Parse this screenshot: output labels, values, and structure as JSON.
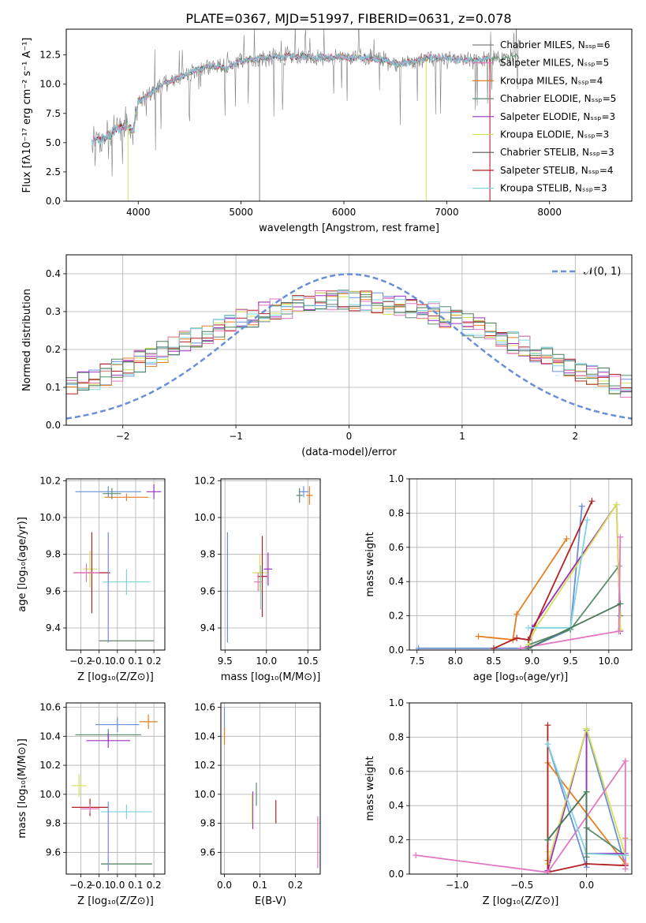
{
  "figure": {
    "title": "PLATE=0367, MJD=51997, FIBERID=0631, z=0.078"
  },
  "colors": {
    "model_series": [
      "#808080",
      "#e377c2",
      "#e67e22",
      "#5b8c6e",
      "#9b30c0",
      "#d4e157",
      "#555555",
      "#b22222",
      "#7fd4e0"
    ],
    "summary_series": [
      "#6a8fd8",
      "#e67e22",
      "#5b8c6e",
      "#9b30c0",
      "#d4e157",
      "#b22222",
      "#e377c2",
      "#7fd4e0",
      "#4a7a5a"
    ],
    "gauss": "#6a8fd8",
    "grid": "#b0b0b0"
  },
  "chart_data": [
    {
      "id": "spectrum",
      "type": "line",
      "title": "PLATE=0367, MJD=51997, FIBERID=0631, z=0.078",
      "xlabel": "wavelength [Angstrom, rest frame]",
      "ylabel": "Flux [fλ10⁻¹⁷ erg cm⁻² s⁻¹ A⁻¹]",
      "xlim": [
        3300,
        8800
      ],
      "ylim": [
        0,
        14.7
      ],
      "xticks": [
        4000,
        5000,
        6000,
        7000,
        8000
      ],
      "yticks": [
        0.0,
        2.5,
        5.0,
        7.5,
        10.0,
        12.5
      ],
      "grid": false,
      "legend_position": "right",
      "series": [
        {
          "name": "Chabrier MILES, Nₛₛₚ=6"
        },
        {
          "name": "Salpeter MILES, Nₛₛₚ=5"
        },
        {
          "name": "Kroupa MILES, Nₛₛₚ=4"
        },
        {
          "name": "Chabrier ELODIE, Nₛₛₚ=5"
        },
        {
          "name": "Salpeter ELODIE, Nₛₛₚ=3"
        },
        {
          "name": "Kroupa ELODIE, Nₛₛₚ=3"
        },
        {
          "name": "Chabrier STELIB, Nₛₛₚ=3"
        },
        {
          "name": "Salpeter STELIB, Nₛₛₚ=4"
        },
        {
          "name": "Kroupa STELIB, Nₛₛₚ=3"
        }
      ],
      "continuum": {
        "x": [
          3550,
          3700,
          3800,
          3900,
          3950,
          4000,
          4100,
          4200,
          4300,
          4500,
          4700,
          4861,
          5000,
          5200,
          5500,
          5800,
          6000,
          6300,
          6563,
          6800,
          7000,
          7200,
          7500,
          7700
        ],
        "y": [
          5.0,
          5.5,
          6.2,
          6.6,
          5.8,
          8.5,
          9.0,
          9.8,
          10.2,
          11.0,
          11.6,
          11.3,
          12.0,
          12.2,
          12.4,
          12.3,
          12.3,
          12.2,
          11.7,
          12.2,
          12.2,
          12.0,
          12.2,
          12.3
        ]
      }
    },
    {
      "id": "residuals",
      "type": "histogram",
      "xlabel": "(data-model)/error",
      "ylabel": "Normed distribution",
      "xlim": [
        -2.5,
        2.5
      ],
      "ylim": [
        0,
        0.45
      ],
      "xticks": [
        -2,
        -1,
        0,
        1,
        2
      ],
      "yticks": [
        0.0,
        0.1,
        0.2,
        0.3,
        0.4
      ],
      "grid": true,
      "legend_position": "top-right",
      "gauss_label": "𝒩(0, 1)",
      "bins": 50
    },
    {
      "id": "age-vs-Z",
      "type": "scatter",
      "xlabel": "Z [log₁₀(Z/Z⊙)]",
      "ylabel": "age  [log₁₀(age/yr)]",
      "xlim": [
        -0.28,
        0.26
      ],
      "ylim": [
        9.28,
        10.21
      ],
      "xticks": [
        -0.2,
        -0.1,
        0.0,
        0.1,
        0.2
      ],
      "yticks": [
        9.4,
        9.6,
        9.8,
        10.0,
        10.2
      ],
      "grid": true,
      "points": [
        {
          "x": -0.05,
          "y": 10.14,
          "xerr": 0.18,
          "yerr": 0.03
        },
        {
          "x": 0.05,
          "y": 10.11,
          "xerr": 0.12,
          "yerr": 0.02
        },
        {
          "x": -0.03,
          "y": 10.13,
          "xerr": 0.05,
          "yerr": 0.03
        },
        {
          "x": 0.2,
          "y": 10.14,
          "xerr": 0.04,
          "yerr": 0.04
        },
        {
          "x": -0.15,
          "y": 9.72,
          "xerr": 0.04,
          "yerr": 0.1
        },
        {
          "x": -0.14,
          "y": 9.7,
          "xerr": 0.1,
          "yerr": 0.22
        },
        {
          "x": -0.17,
          "y": 9.7,
          "xerr": 0.07,
          "yerr": 0.05
        },
        {
          "x": 0.05,
          "y": 9.65,
          "xerr": 0.13,
          "yerr": 0.07
        },
        {
          "x": 0.05,
          "y": 9.33,
          "xerr": 0.15,
          "yerr": 0.0
        },
        {
          "x": -0.05,
          "y": 9.62,
          "xerr": 0.0,
          "yerr": 0.3
        }
      ]
    },
    {
      "id": "age-vs-mass",
      "type": "scatter",
      "xlabel": "mass [log₁₀(M/M⊙)]",
      "ylabel": "",
      "xlim": [
        9.45,
        10.65
      ],
      "ylim": [
        9.28,
        10.21
      ],
      "xticks": [
        9.5,
        10.0,
        10.5
      ],
      "yticks": [
        9.4,
        9.6,
        9.8,
        10.0,
        10.2
      ],
      "grid": true,
      "points": [
        {
          "x": 10.45,
          "y": 10.14,
          "xerr": 0.06,
          "yerr": 0.03
        },
        {
          "x": 10.52,
          "y": 10.12,
          "xerr": 0.04,
          "yerr": 0.05
        },
        {
          "x": 10.4,
          "y": 10.12,
          "xerr": 0.04,
          "yerr": 0.04
        },
        {
          "x": 10.02,
          "y": 9.72,
          "xerr": 0.05,
          "yerr": 0.09
        },
        {
          "x": 9.92,
          "y": 9.7,
          "xerr": 0.09,
          "yerr": 0.1
        },
        {
          "x": 9.95,
          "y": 9.68,
          "xerr": 0.06,
          "yerr": 0.22
        },
        {
          "x": 9.9,
          "y": 9.65,
          "xerr": 0.05,
          "yerr": 0.05
        },
        {
          "x": 9.93,
          "y": 9.62,
          "xerr": 0.0,
          "yerr": 0.12
        },
        {
          "x": 9.55,
          "y": 9.33,
          "xerr": 0.0,
          "yerr": 0.0
        },
        {
          "x": 9.53,
          "y": 9.62,
          "xerr": 0.0,
          "yerr": 0.3
        }
      ]
    },
    {
      "id": "massweight-vs-age",
      "type": "line",
      "xlabel": "age  [log₁₀(age/yr)]",
      "ylabel": "mass weight",
      "xlim": [
        7.4,
        10.3
      ],
      "ylim": [
        0,
        1.0
      ],
      "xticks": [
        7.5,
        8.0,
        8.5,
        9.0,
        9.5,
        10.0
      ],
      "yticks": [
        0.0,
        0.2,
        0.4,
        0.6,
        0.8,
        1.0
      ],
      "grid": true,
      "series": [
        {
          "x": [
            7.52,
            8.95,
            9.5,
            9.65
          ],
          "y": [
            0.01,
            0.01,
            0.12,
            0.84
          ]
        },
        {
          "x": [
            8.3,
            8.75,
            8.8,
            9.45
          ],
          "y": [
            0.08,
            0.06,
            0.21,
            0.65
          ]
        },
        {
          "x": [
            8.95,
            9.5,
            10.13,
            10.15
          ],
          "y": [
            0.03,
            0.12,
            0.49,
            0.2
          ]
        },
        {
          "x": [
            8.95,
            9.0,
            10.1,
            10.15
          ],
          "y": [
            0.02,
            0.13,
            0.85,
            0.11
          ]
        },
        {
          "x": [
            8.95,
            9.05,
            10.1,
            10.15
          ],
          "y": [
            0.03,
            0.13,
            0.85,
            0.12
          ]
        },
        {
          "x": [
            8.5,
            8.8,
            8.95,
            9.78
          ],
          "y": [
            0.01,
            0.07,
            0.06,
            0.87
          ]
        },
        {
          "x": [
            8.85,
            10.13,
            10.15
          ],
          "y": [
            0.01,
            0.11,
            0.66
          ]
        },
        {
          "x": [
            8.95,
            9.5,
            9.72
          ],
          "y": [
            0.13,
            0.13,
            0.76
          ]
        },
        {
          "x": [
            8.95,
            10.15
          ],
          "y": [
            0.01,
            0.27
          ]
        }
      ]
    },
    {
      "id": "mass-vs-Z",
      "type": "scatter",
      "xlabel": "Z [log₁₀(Z/Z⊙)]",
      "ylabel": "mass [log₁₀(M/M⊙)]",
      "xlim": [
        -0.28,
        0.26
      ],
      "ylim": [
        9.45,
        10.63
      ],
      "xticks": [
        -0.2,
        -0.1,
        0.0,
        0.1,
        0.2
      ],
      "yticks": [
        9.6,
        9.8,
        10.0,
        10.2,
        10.4,
        10.6
      ],
      "grid": true,
      "points": [
        {
          "x": 0.0,
          "y": 10.48,
          "xerr": 0.12,
          "yerr": 0.05
        },
        {
          "x": 0.17,
          "y": 10.5,
          "xerr": 0.05,
          "yerr": 0.05
        },
        {
          "x": -0.05,
          "y": 10.41,
          "xerr": 0.18,
          "yerr": 0.04
        },
        {
          "x": -0.05,
          "y": 10.37,
          "xerr": 0.12,
          "yerr": 0.05
        },
        {
          "x": -0.21,
          "y": 10.06,
          "xerr": 0.04,
          "yerr": 0.08
        },
        {
          "x": -0.15,
          "y": 9.91,
          "xerr": 0.1,
          "yerr": 0.06
        },
        {
          "x": -0.15,
          "y": 9.9,
          "xerr": 0.05,
          "yerr": 0.03
        },
        {
          "x": 0.05,
          "y": 9.88,
          "xerr": 0.14,
          "yerr": 0.05
        },
        {
          "x": 0.05,
          "y": 9.52,
          "xerr": 0.14,
          "yerr": 0.0
        },
        {
          "x": -0.05,
          "y": 9.71,
          "xerr": 0.0,
          "yerr": 0.24
        }
      ]
    },
    {
      "id": "mass-vs-EBV",
      "type": "scatter",
      "xlabel": "E(B-V)",
      "ylabel": "",
      "xlim": [
        -0.01,
        0.27
      ],
      "ylim": [
        9.45,
        10.63
      ],
      "xticks": [
        0.0,
        0.1,
        0.2
      ],
      "yticks": [
        9.6,
        9.8,
        10.0,
        10.2,
        10.4,
        10.6
      ],
      "grid": true,
      "points": [
        {
          "x": 0.0,
          "y": 10.52,
          "xerr": 0.0,
          "yerr": 0.08
        },
        {
          "x": 0.0,
          "y": 10.4,
          "xerr": 0.0,
          "yerr": 0.06
        },
        {
          "x": 0.09,
          "y": 10.0,
          "xerr": 0.0,
          "yerr": 0.08
        },
        {
          "x": 0.08,
          "y": 9.89,
          "xerr": 0.0,
          "yerr": 0.13
        },
        {
          "x": 0.078,
          "y": 9.9,
          "xerr": 0.0,
          "yerr": 0.1
        },
        {
          "x": 0.145,
          "y": 9.88,
          "xerr": 0.0,
          "yerr": 0.08
        },
        {
          "x": 0.263,
          "y": 9.67,
          "xerr": 0.0,
          "yerr": 0.18
        }
      ]
    },
    {
      "id": "massweight-vs-Z",
      "type": "line",
      "xlabel": "Z [log₁₀(Z/Z⊙)]",
      "ylabel": "mass weight",
      "xlim": [
        -1.37,
        0.35
      ],
      "ylim": [
        0,
        1.0
      ],
      "xticks": [
        -1.0,
        -0.5,
        0.0
      ],
      "yticks": [
        0.0,
        0.2,
        0.4,
        0.6,
        0.8,
        1.0
      ],
      "grid": true,
      "series": [
        {
          "x": [
            -0.3,
            0.0,
            0.0,
            0.3
          ],
          "y": [
            0.76,
            0.04,
            0.84,
            0.05
          ]
        },
        {
          "x": [
            -0.3,
            -0.3,
            0.3,
            0.3
          ],
          "y": [
            0.08,
            0.65,
            0.06,
            0.21
          ]
        },
        {
          "x": [
            -0.3,
            0.0,
            0.0,
            0.3
          ],
          "y": [
            0.2,
            0.48,
            0.27,
            0.11
          ]
        },
        {
          "x": [
            -0.3,
            0.0,
            0.0,
            0.3
          ],
          "y": [
            0.02,
            0.85,
            0.12,
            0.12
          ]
        },
        {
          "x": [
            -0.3,
            -0.3,
            0.0,
            0.3
          ],
          "y": [
            0.13,
            0.06,
            0.85,
            0.11
          ]
        },
        {
          "x": [
            -0.3,
            -0.3,
            0.0,
            0.3
          ],
          "y": [
            0.87,
            0.01,
            0.06,
            0.05
          ]
        },
        {
          "x": [
            -1.32,
            -0.3,
            0.3,
            0.3
          ],
          "y": [
            0.11,
            0.01,
            0.66,
            0.03
          ]
        },
        {
          "x": [
            -0.3,
            0.0,
            0.3
          ],
          "y": [
            0.76,
            0.12,
            0.11
          ]
        },
        {
          "x": [
            -0.3,
            0.0,
            0.0
          ],
          "y": [
            0.2,
            0.48,
            0.1
          ]
        }
      ]
    }
  ]
}
